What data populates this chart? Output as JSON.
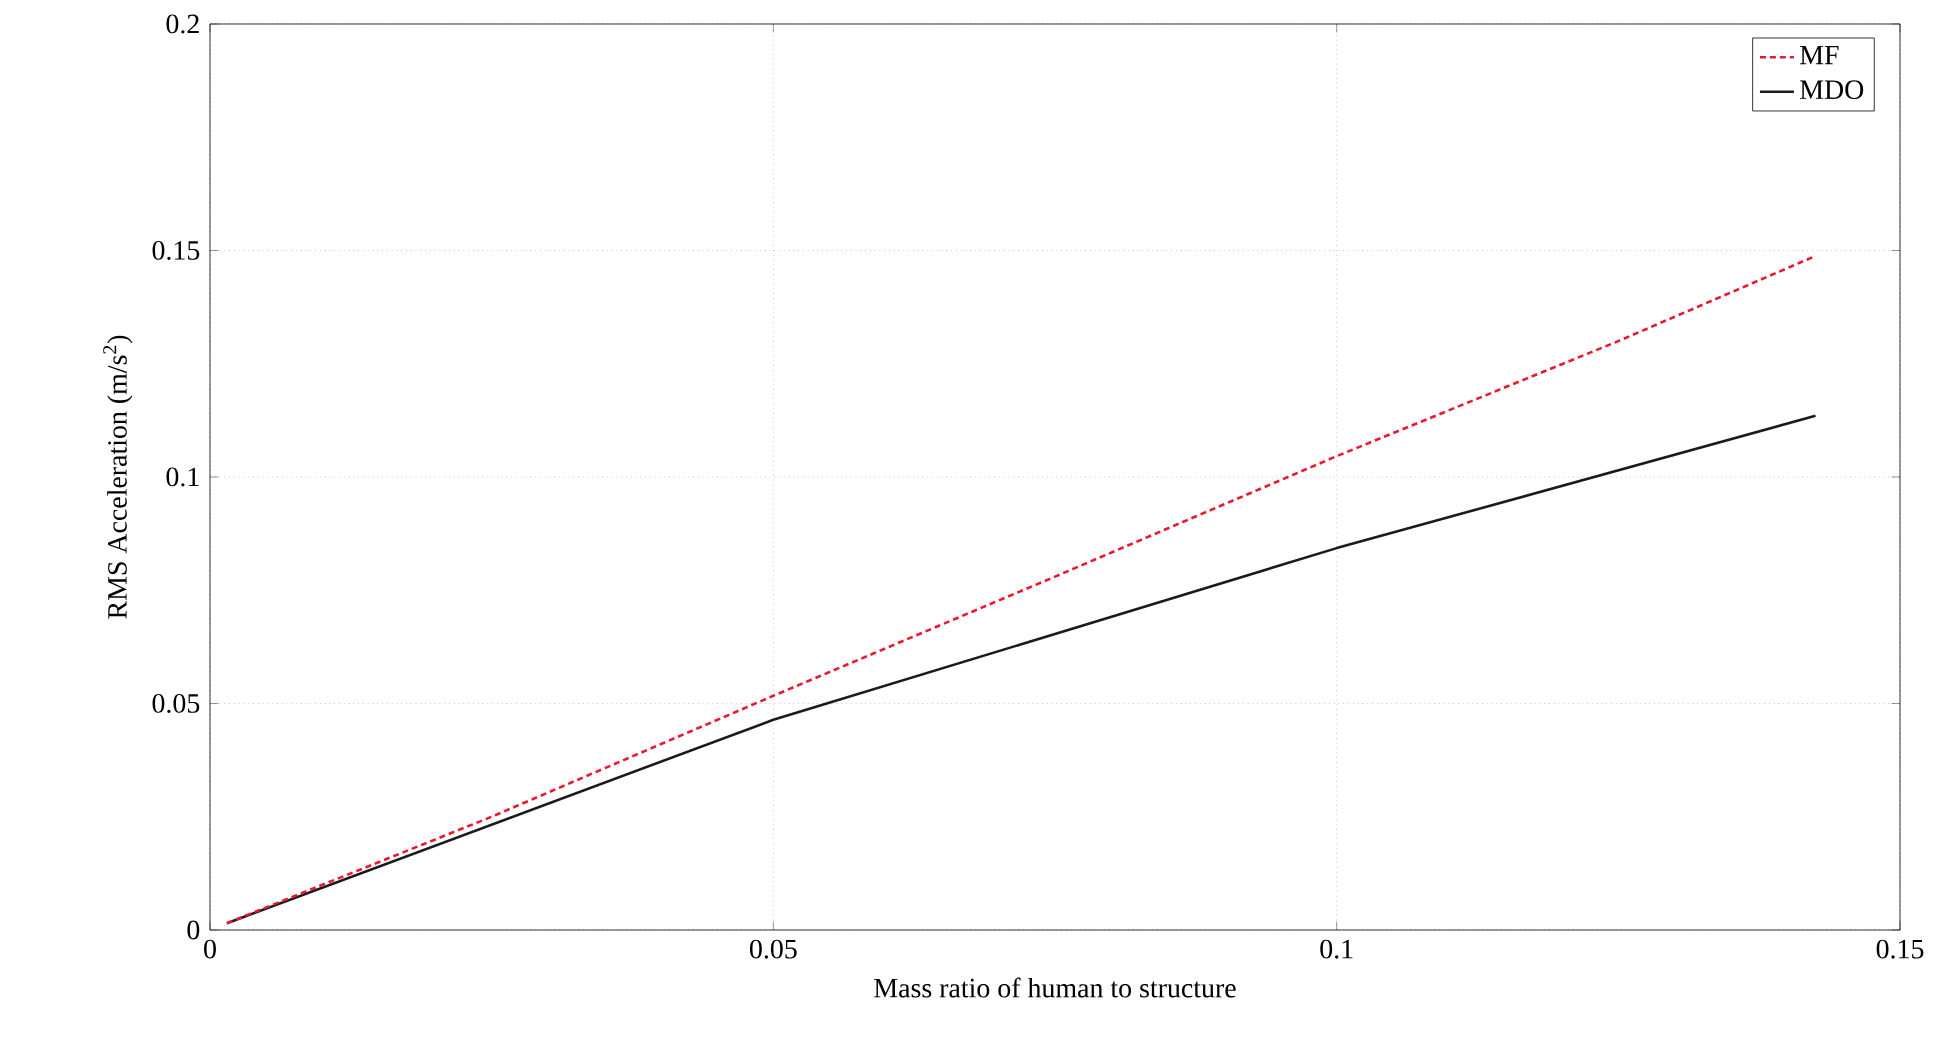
{
  "chart_data": {
    "type": "line",
    "xlabel": "Mass ratio of human to structure",
    "ylabel": "RMS Acceleration (m/s$^{2}$)",
    "xlim": [
      0,
      0.15
    ],
    "ylim": [
      0,
      0.2
    ],
    "xticks": [
      0,
      0.05,
      0.1,
      0.15
    ],
    "yticks": [
      0,
      0.05,
      0.1,
      0.15,
      0.2
    ],
    "grid": true,
    "legend": "top right",
    "series": [
      {
        "name": "MF",
        "color": "#e8192c",
        "line_style": "dashed",
        "x": [
          0.0015,
          0.025,
          0.05,
          0.075,
          0.1,
          0.125,
          0.1425
        ],
        "values": [
          0.0015,
          0.025,
          0.0517,
          0.078,
          0.1046,
          0.13,
          0.1488
        ]
      },
      {
        "name": "MDO",
        "color": "#1a1a1a",
        "line_style": "solid",
        "x": [
          0.0015,
          0.05,
          0.1,
          0.1425
        ],
        "values": [
          0.0015,
          0.0464,
          0.0843,
          0.1135
        ]
      }
    ]
  }
}
